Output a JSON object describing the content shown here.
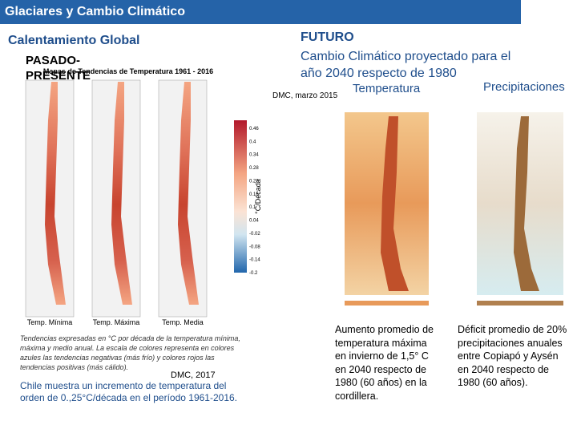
{
  "header": {
    "title": "Glaciares y Cambio Climático"
  },
  "left": {
    "heading": "Calentamiento Global",
    "subheading": "PASADO-PRESENTE",
    "figure": {
      "title": "Mapas de Tendencias de Temperatura 1961 - 2016",
      "colorbar_labels": [
        "0.46",
        "0.4",
        "0.34",
        "0.28",
        "0.22",
        "0.16",
        "0.1",
        "0.04",
        "-0.02",
        "-0.08",
        "-0.14",
        "-0.2"
      ],
      "colorbar_unit": "°C/Década",
      "map_labels": [
        "Temp. Mínima",
        "Temp. Máxima",
        "Temp. Media"
      ]
    },
    "caption": "Tendencias expresadas en °C por década de la temperatura mínima, máxima y medio anual. La escala de colores representa en colores azules las tendencias negativas (más frío) y colores rojos las tendencias positivas (más cálido).",
    "source": "DMC, 2017",
    "summary": "Chile muestra un incremento de temperatura del orden de 0.,25°C/década en el período 1961-2016."
  },
  "right": {
    "heading": "FUTURO",
    "subheading": "Cambio Climático proyectado para el año 2040 respecto de 1980",
    "source": "DMC, marzo 2015",
    "temperature": {
      "label": "Temperatura",
      "text": "Aumento promedio de temperatura máxima en invierno de 1,5° C en 2040 respecto de 1980 (60 años) en la cordillera."
    },
    "precipitation": {
      "label": "Precipitaciones",
      "text": "Déficit promedio de 20% precipitaciones anuales entre Copiapó y Aysén en 2040 respecto de 1980 (60 años)."
    }
  }
}
